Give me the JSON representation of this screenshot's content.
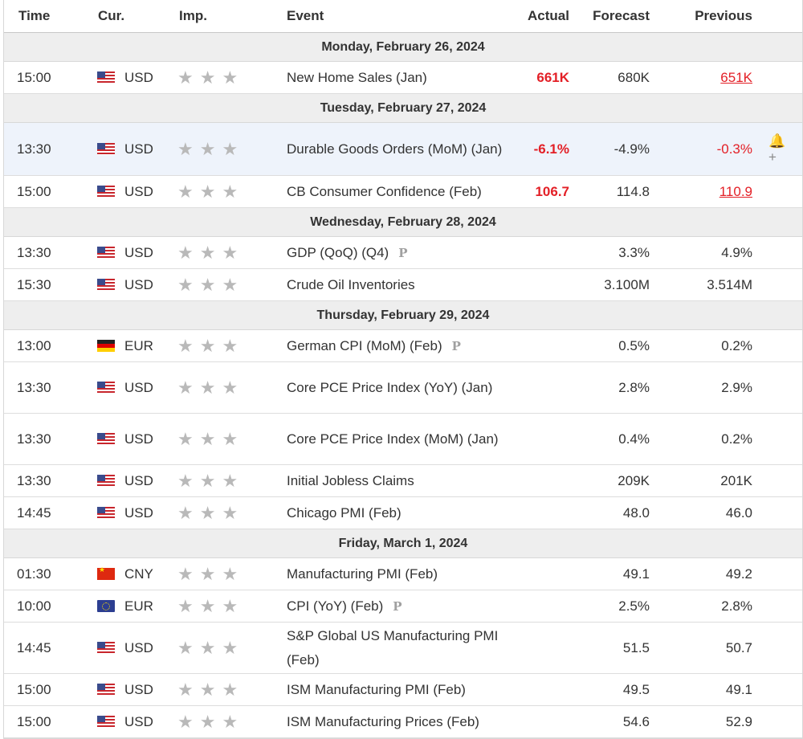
{
  "header": {
    "time": "Time",
    "currency": "Cur.",
    "importance": "Imp.",
    "event": "Event",
    "actual": "Actual",
    "forecast": "Forecast",
    "previous": "Previous"
  },
  "icons": {
    "star": "★",
    "preliminary": "P",
    "alert": "🔔+"
  },
  "colors": {
    "negative": "#e31f26",
    "highlight_row": "#eef3fb",
    "day_row": "#eeeeee"
  },
  "days": [
    {
      "label": "Monday, February 26, 2024",
      "events": [
        {
          "time": "15:00",
          "flag": "usd",
          "currency": "USD",
          "event": "New Home Sales (Jan)",
          "prelim": false,
          "actual": "661K",
          "forecast": "680K",
          "previous": "651K",
          "previous_style": "red-underline"
        }
      ]
    },
    {
      "label": "Tuesday, February 27, 2024",
      "events": [
        {
          "time": "13:30",
          "flag": "usd",
          "currency": "USD",
          "event": "Durable Goods Orders (MoM) (Jan)",
          "prelim": false,
          "actual": "-6.1%",
          "forecast": "-4.9%",
          "previous": "-0.3%",
          "previous_style": "red",
          "highlight": true,
          "alert": true
        },
        {
          "time": "15:00",
          "flag": "usd",
          "currency": "USD",
          "event": "CB Consumer Confidence (Feb)",
          "prelim": false,
          "actual": "106.7",
          "forecast": "114.8",
          "previous": "110.9",
          "previous_style": "red-underline"
        }
      ]
    },
    {
      "label": "Wednesday, February 28, 2024",
      "events": [
        {
          "time": "13:30",
          "flag": "usd",
          "currency": "USD",
          "event": "GDP (QoQ) (Q4)",
          "prelim": true,
          "actual": "",
          "forecast": "3.3%",
          "previous": "4.9%"
        },
        {
          "time": "15:30",
          "flag": "usd",
          "currency": "USD",
          "event": "Crude Oil Inventories",
          "prelim": false,
          "actual": "",
          "forecast": "3.100M",
          "previous": "3.514M"
        }
      ]
    },
    {
      "label": "Thursday, February 29, 2024",
      "events": [
        {
          "time": "13:00",
          "flag": "eur-de",
          "currency": "EUR",
          "event": "German CPI (MoM) (Feb)",
          "prelim": true,
          "actual": "",
          "forecast": "0.5%",
          "previous": "0.2%"
        },
        {
          "time": "13:30",
          "flag": "usd",
          "currency": "USD",
          "event": "Core PCE Price Index (YoY) (Jan)",
          "prelim": false,
          "actual": "",
          "forecast": "2.8%",
          "previous": "2.9%"
        },
        {
          "time": "13:30",
          "flag": "usd",
          "currency": "USD",
          "event": "Core PCE Price Index (MoM) (Jan)",
          "prelim": false,
          "actual": "",
          "forecast": "0.4%",
          "previous": "0.2%"
        },
        {
          "time": "13:30",
          "flag": "usd",
          "currency": "USD",
          "event": "Initial Jobless Claims",
          "prelim": false,
          "actual": "",
          "forecast": "209K",
          "previous": "201K"
        },
        {
          "time": "14:45",
          "flag": "usd",
          "currency": "USD",
          "event": "Chicago PMI (Feb)",
          "prelim": false,
          "actual": "",
          "forecast": "48.0",
          "previous": "46.0"
        }
      ]
    },
    {
      "label": "Friday, March 1, 2024",
      "events": [
        {
          "time": "01:30",
          "flag": "cny",
          "currency": "CNY",
          "event": "Manufacturing PMI (Feb)",
          "prelim": false,
          "actual": "",
          "forecast": "49.1",
          "previous": "49.2"
        },
        {
          "time": "10:00",
          "flag": "eur-eu",
          "currency": "EUR",
          "event": "CPI (YoY) (Feb)",
          "prelim": true,
          "actual": "",
          "forecast": "2.5%",
          "previous": "2.8%"
        },
        {
          "time": "14:45",
          "flag": "usd",
          "currency": "USD",
          "event": "S&P Global US Manufacturing PMI (Feb)",
          "prelim": false,
          "actual": "",
          "forecast": "51.5",
          "previous": "50.7"
        },
        {
          "time": "15:00",
          "flag": "usd",
          "currency": "USD",
          "event": "ISM Manufacturing PMI (Feb)",
          "prelim": false,
          "actual": "",
          "forecast": "49.5",
          "previous": "49.1"
        },
        {
          "time": "15:00",
          "flag": "usd",
          "currency": "USD",
          "event": "ISM Manufacturing Prices (Feb)",
          "prelim": false,
          "actual": "",
          "forecast": "54.6",
          "previous": "52.9"
        }
      ]
    }
  ]
}
